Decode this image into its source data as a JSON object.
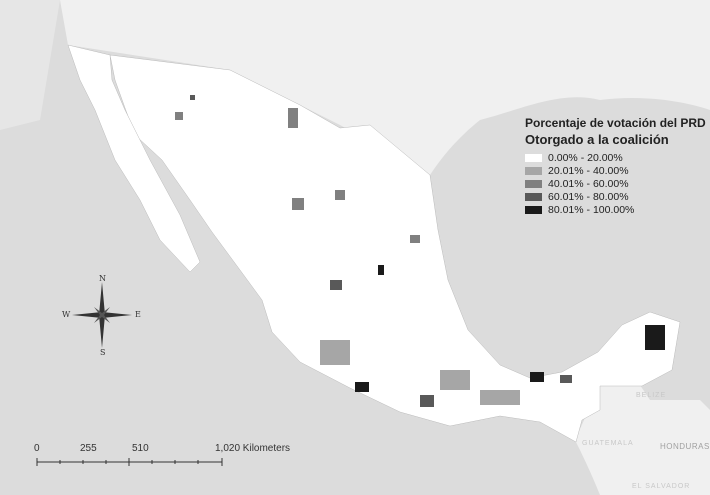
{
  "legend": {
    "title": "Porcentaje de votación del PRD",
    "subtitle": "Otorgado a la coalición",
    "classes": [
      {
        "label": "0.00% - 20.00%",
        "color": "#ffffff"
      },
      {
        "label": "20.01% - 40.00%",
        "color": "#a6a6a6"
      },
      {
        "label": "40.01% - 60.00%",
        "color": "#808080"
      },
      {
        "label": "60.01% - 80.00%",
        "color": "#595959"
      },
      {
        "label": "80.01% - 100.00%",
        "color": "#1a1a1a"
      }
    ]
  },
  "scale_bar": {
    "labels": [
      "0",
      "255",
      "510",
      "1,020 Kilometers"
    ]
  },
  "compass": {
    "n": "N",
    "s": "S",
    "e": "E",
    "w": "W"
  },
  "places": {
    "belize": "BELIZE",
    "guatemala": "GUATEMALA",
    "honduras": "HONDURAS",
    "el_salvador": "EL SALVADOR"
  },
  "colors": {
    "water": "#dcdcdc",
    "land": "#f0f0f0",
    "mexico": "#ffffff"
  }
}
